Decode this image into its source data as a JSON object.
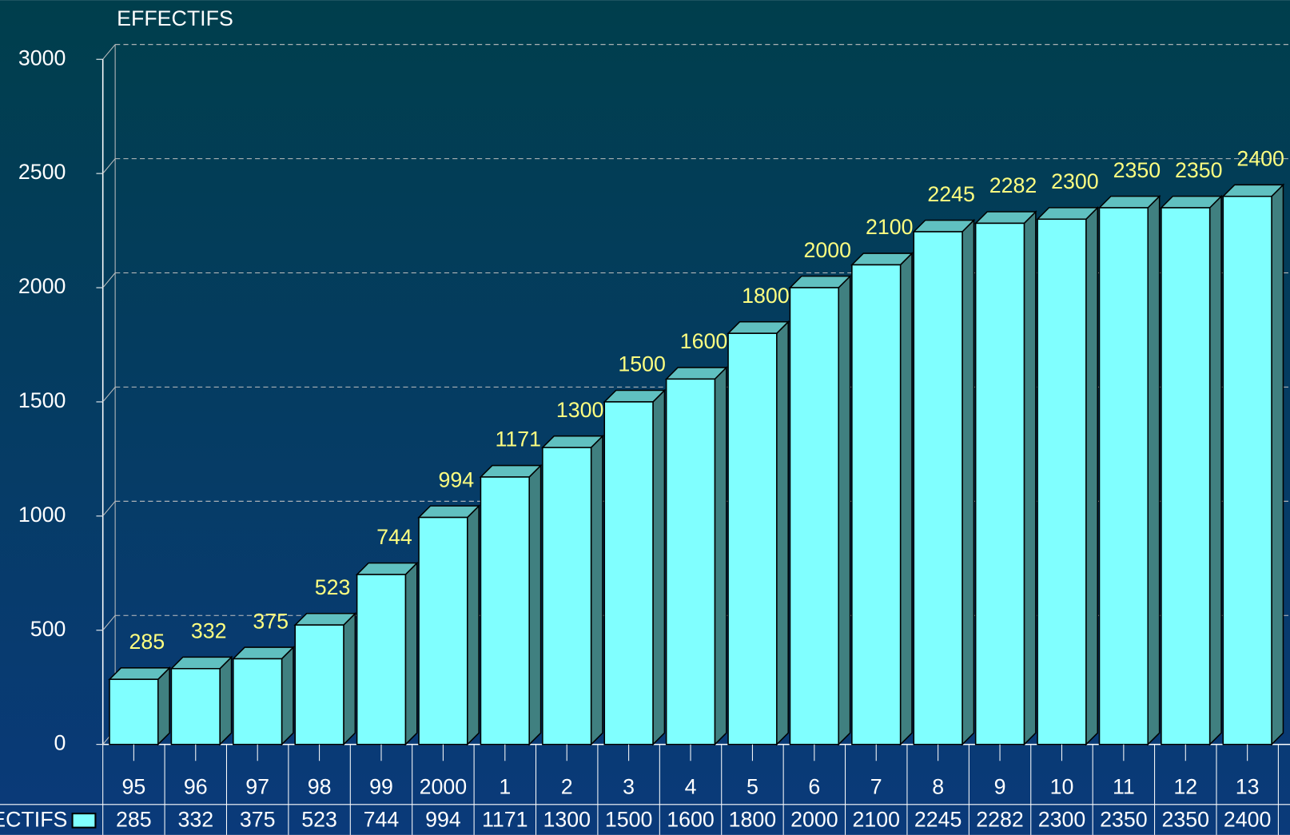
{
  "chart_data": {
    "type": "bar3d",
    "title": "EFFECTIFS",
    "categories": [
      "95",
      "96",
      "97",
      "98",
      "99",
      "2000",
      "1",
      "2",
      "3",
      "4",
      "5",
      "6",
      "7",
      "8",
      "9",
      "10",
      "11",
      "12",
      "13"
    ],
    "series": [
      {
        "name": "EFFECTIFS",
        "color": "#80ffff",
        "values": [
          285,
          332,
          375,
          523,
          744,
          994,
          1171,
          1300,
          1500,
          1600,
          1800,
          2000,
          2100,
          2245,
          2282,
          2300,
          2350,
          2350,
          2400
        ]
      }
    ],
    "ylim": [
      0,
      3000
    ],
    "yticks": [
      0,
      500,
      1000,
      1500,
      2000,
      2500,
      3000
    ],
    "grid": true,
    "data_table": true
  }
}
